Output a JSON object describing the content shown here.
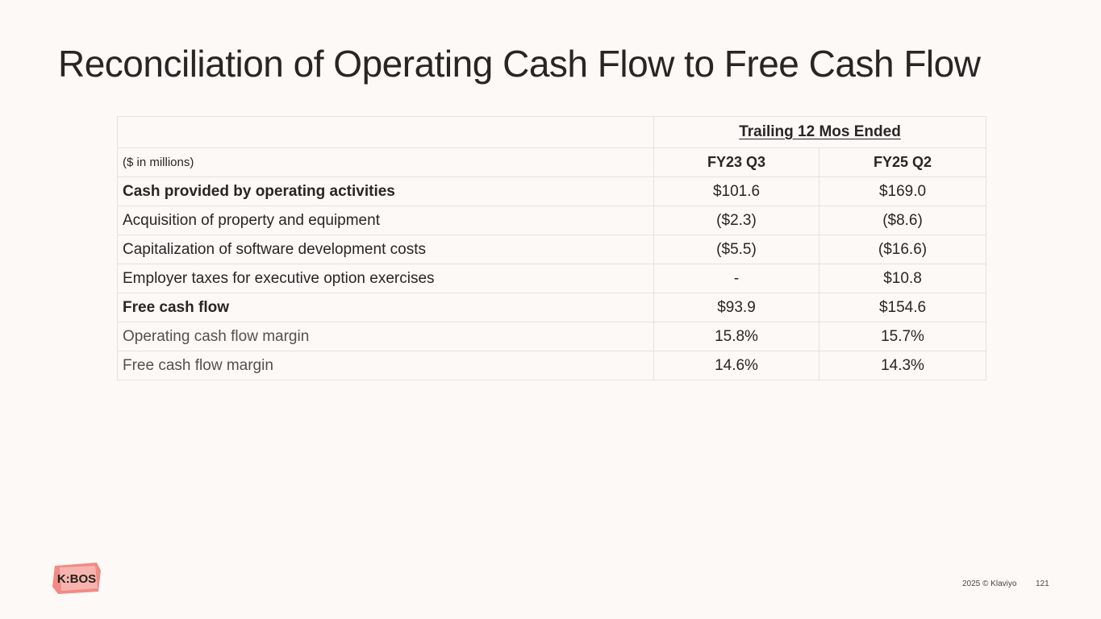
{
  "slide": {
    "title": "Reconciliation of Operating Cash Flow to Free Cash Flow"
  },
  "table": {
    "period_header": "Trailing 12 Mos Ended",
    "units_label": "($ in millions)",
    "columns": [
      "FY23 Q3",
      "FY25 Q2"
    ],
    "rows": [
      {
        "label": "Cash provided by operating activities",
        "values": [
          "$101.6",
          "$169.0"
        ]
      },
      {
        "label": "Acquisition of property and equipment",
        "values": [
          "($2.3)",
          "($8.6)"
        ]
      },
      {
        "label": "Capitalization of software development costs",
        "values": [
          "($5.5)",
          "($16.6)"
        ]
      },
      {
        "label": "Employer taxes for executive option exercises",
        "values": [
          "-",
          "$10.8"
        ]
      },
      {
        "label": "Free cash flow",
        "values": [
          "$93.9",
          "$154.6"
        ]
      },
      {
        "label": "Operating cash flow margin",
        "values": [
          "15.8%",
          "15.7%"
        ]
      },
      {
        "label": "Free cash flow margin",
        "values": [
          "14.6%",
          "14.3%"
        ]
      }
    ]
  },
  "logo": {
    "text": "K:BOS",
    "accent": "#f2777a"
  },
  "footer": {
    "copyright": "2025 © Klaviyo",
    "page_number": "121"
  }
}
